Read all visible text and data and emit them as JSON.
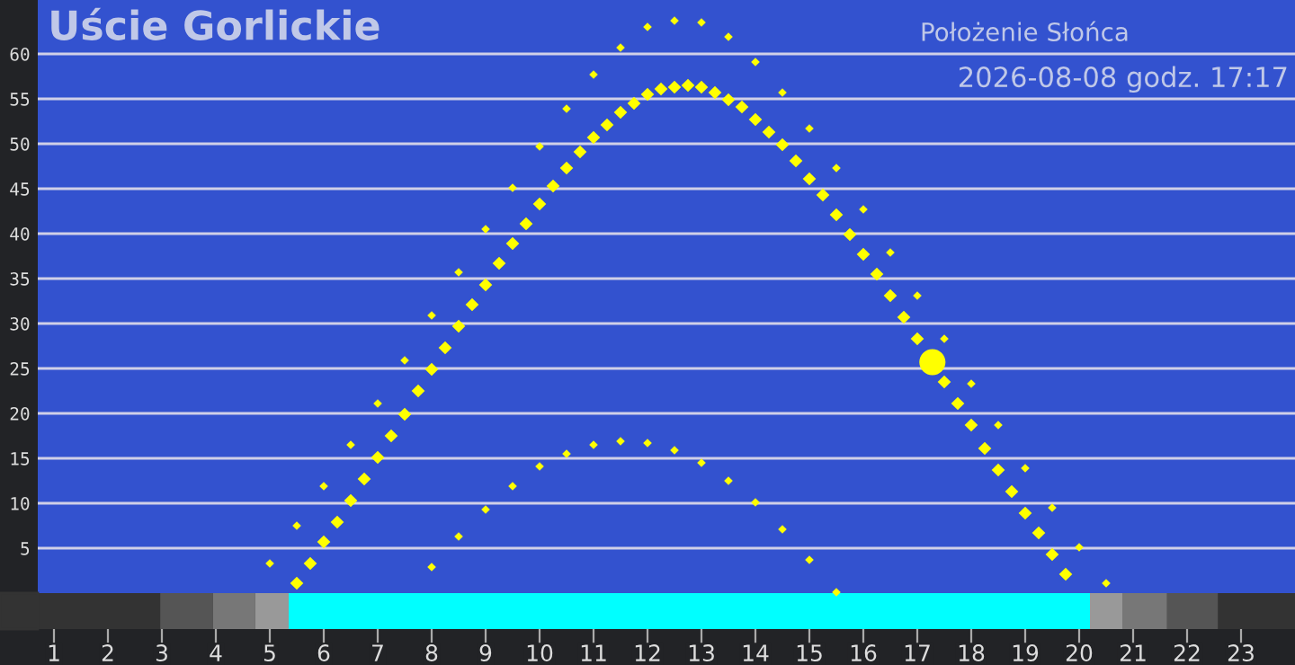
{
  "chart_data": {
    "type": "scatter",
    "title": "Uście Gorlickie",
    "subtitle": "Położenie Słońca",
    "annotations": [
      "2026-08-08 godz. 17:17"
    ],
    "xlim": [
      0.7,
      24
    ],
    "xticks": [
      1,
      2,
      3,
      4,
      5,
      6,
      7,
      8,
      9,
      10,
      11,
      12,
      13,
      14,
      15,
      16,
      17,
      18,
      19,
      20,
      21,
      22,
      23
    ],
    "ylim": [
      -4,
      66
    ],
    "yticks": [
      5,
      10,
      15,
      20,
      25,
      30,
      35,
      40,
      45,
      50,
      55,
      60
    ],
    "grid": "y",
    "marker": "diamond",
    "series": [
      {
        "color": "#ffff00",
        "x": [
          5.5,
          5.75,
          6,
          6.25,
          6.5,
          6.75,
          7,
          7.25,
          7.5,
          7.75,
          8,
          8.25,
          8.5,
          8.75,
          9,
          9.25,
          9.5,
          9.75,
          10,
          10.25,
          10.5,
          10.75,
          11,
          11.25,
          11.5,
          11.75,
          12,
          12.25,
          12.5,
          12.75,
          13,
          13.25,
          13.5,
          13.75,
          14,
          14.25,
          14.5,
          14.75,
          15,
          15.25,
          15.5,
          15.75,
          16,
          16.25,
          16.5,
          16.75,
          17,
          17.5,
          17.75,
          18,
          18.25,
          18.5,
          18.75,
          19,
          19.25,
          19.5,
          19.75
        ],
        "values": [
          1.1,
          3.3,
          5.7,
          7.9,
          10.3,
          12.7,
          15.1,
          17.5,
          19.9,
          22.5,
          24.9,
          27.3,
          29.7,
          32.1,
          34.3,
          36.7,
          38.9,
          41.1,
          43.3,
          45.3,
          47.3,
          49.1,
          50.7,
          52.1,
          53.5,
          54.5,
          55.5,
          56.1,
          56.3,
          56.5,
          56.3,
          55.7,
          54.9,
          54.1,
          52.7,
          51.3,
          49.9,
          48.1,
          46.1,
          44.3,
          42.1,
          39.9,
          37.7,
          35.5,
          33.1,
          30.7,
          28.3,
          23.5,
          21.1,
          18.7,
          16.1,
          13.7,
          11.3,
          8.9,
          6.7,
          4.3,
          2.1
        ]
      },
      {
        "color": "#ffff00",
        "x": [
          5,
          5.5,
          6,
          6.5,
          7,
          7.5,
          8,
          8.5,
          9,
          9.5,
          10,
          10.5,
          11,
          11.5,
          12,
          12.5,
          13,
          13.5,
          14,
          14.5,
          15,
          15.5,
          16,
          16.5,
          17,
          17.5,
          18,
          18.5,
          19,
          19.5,
          20,
          20.5
        ],
        "values": [
          3.3,
          7.5,
          11.9,
          16.5,
          21.1,
          25.9,
          30.9,
          35.7,
          40.5,
          45.1,
          49.7,
          53.9,
          57.7,
          60.7,
          63.0,
          63.7,
          63.5,
          61.9,
          59.1,
          55.7,
          51.7,
          47.3,
          42.7,
          37.9,
          33.1,
          28.3,
          23.3,
          18.7,
          13.9,
          9.5,
          5.1,
          1.1
        ]
      },
      {
        "color": "#ffff00",
        "x": [
          8,
          8.5,
          9,
          9.5,
          10,
          10.5,
          11,
          11.5,
          12,
          12.5,
          13,
          13.5,
          14,
          14.5,
          15,
          15.5
        ],
        "values": [
          2.9,
          6.3,
          9.3,
          11.9,
          14.1,
          15.5,
          16.5,
          16.9,
          16.7,
          15.9,
          14.5,
          12.5,
          10.1,
          7.1,
          3.7,
          0.1
        ]
      },
      {
        "color": "#ffff00",
        "marker": "circle",
        "x": [
          17.28
        ],
        "values": [
          25.7
        ]
      }
    ],
    "bands": [
      {
        "axis": "x",
        "from": 2.97,
        "to": 3.95,
        "color": "#555555"
      },
      {
        "axis": "x",
        "from": 3.95,
        "to": 4.73,
        "color": "#777777"
      },
      {
        "axis": "x",
        "from": 4.73,
        "to": 5.35,
        "color": "#999999"
      },
      {
        "axis": "x",
        "from": 5.35,
        "to": 20.2,
        "color": "#00ffff"
      },
      {
        "axis": "x",
        "from": 20.2,
        "to": 20.8,
        "color": "#999999"
      },
      {
        "axis": "x",
        "from": 20.8,
        "to": 21.63,
        "color": "#777777"
      },
      {
        "axis": "x",
        "from": 21.63,
        "to": 22.57,
        "color": "#555555"
      }
    ]
  }
}
